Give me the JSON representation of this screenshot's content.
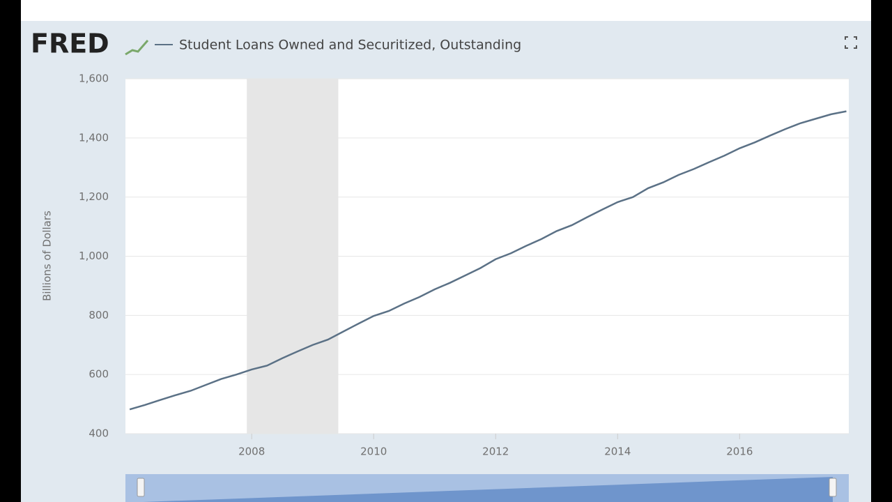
{
  "logo": "FRED",
  "chart_data": {
    "type": "line",
    "title": "Student Loans Owned and Securitized, Outstanding",
    "y_label": "Billions of Dollars",
    "x": [
      2006,
      2006.25,
      2006.5,
      2006.75,
      2007,
      2007.25,
      2007.5,
      2007.75,
      2008,
      2008.25,
      2008.5,
      2008.75,
      2009,
      2009.25,
      2009.5,
      2009.75,
      2010,
      2010.25,
      2010.5,
      2010.75,
      2011,
      2011.25,
      2011.5,
      2011.75,
      2012,
      2012.25,
      2012.5,
      2012.75,
      2013,
      2013.25,
      2013.5,
      2013.75,
      2014,
      2014.25,
      2014.5,
      2014.75,
      2015,
      2015.25,
      2015.5,
      2015.75,
      2016,
      2016.25,
      2016.5,
      2016.75,
      2017,
      2017.25,
      2017.5,
      2017.75
    ],
    "series": [
      {
        "name": "Student Loans Owned and Securitized, Outstanding",
        "color": "#5b7186",
        "values": [
          482,
          497,
          514,
          530,
          545,
          565,
          585,
          600,
          617,
          630,
          655,
          678,
          700,
          718,
          745,
          772,
          798,
          815,
          840,
          862,
          888,
          910,
          935,
          960,
          990,
          1010,
          1035,
          1058,
          1085,
          1105,
          1132,
          1158,
          1183,
          1200,
          1230,
          1250,
          1275,
          1295,
          1318,
          1340,
          1365,
          1385,
          1408,
          1430,
          1450,
          1465,
          1480,
          1490
        ]
      }
    ],
    "recessions": [
      [
        2007.92,
        2009.42
      ]
    ],
    "recession_color": "#e6e6e6",
    "xlim": [
      2005.93,
      2017.79
    ],
    "xticks": [
      2008,
      2010,
      2012,
      2014,
      2016
    ],
    "ylim": [
      400,
      1600
    ],
    "yticks": [
      400,
      600,
      800,
      {
        "value": 1000,
        "label": "1,000"
      },
      {
        "value": 1200,
        "label": "1,200"
      },
      {
        "value": 1400,
        "label": "1,400"
      },
      {
        "value": 1600,
        "label": "1,600"
      }
    ],
    "grid": true
  }
}
